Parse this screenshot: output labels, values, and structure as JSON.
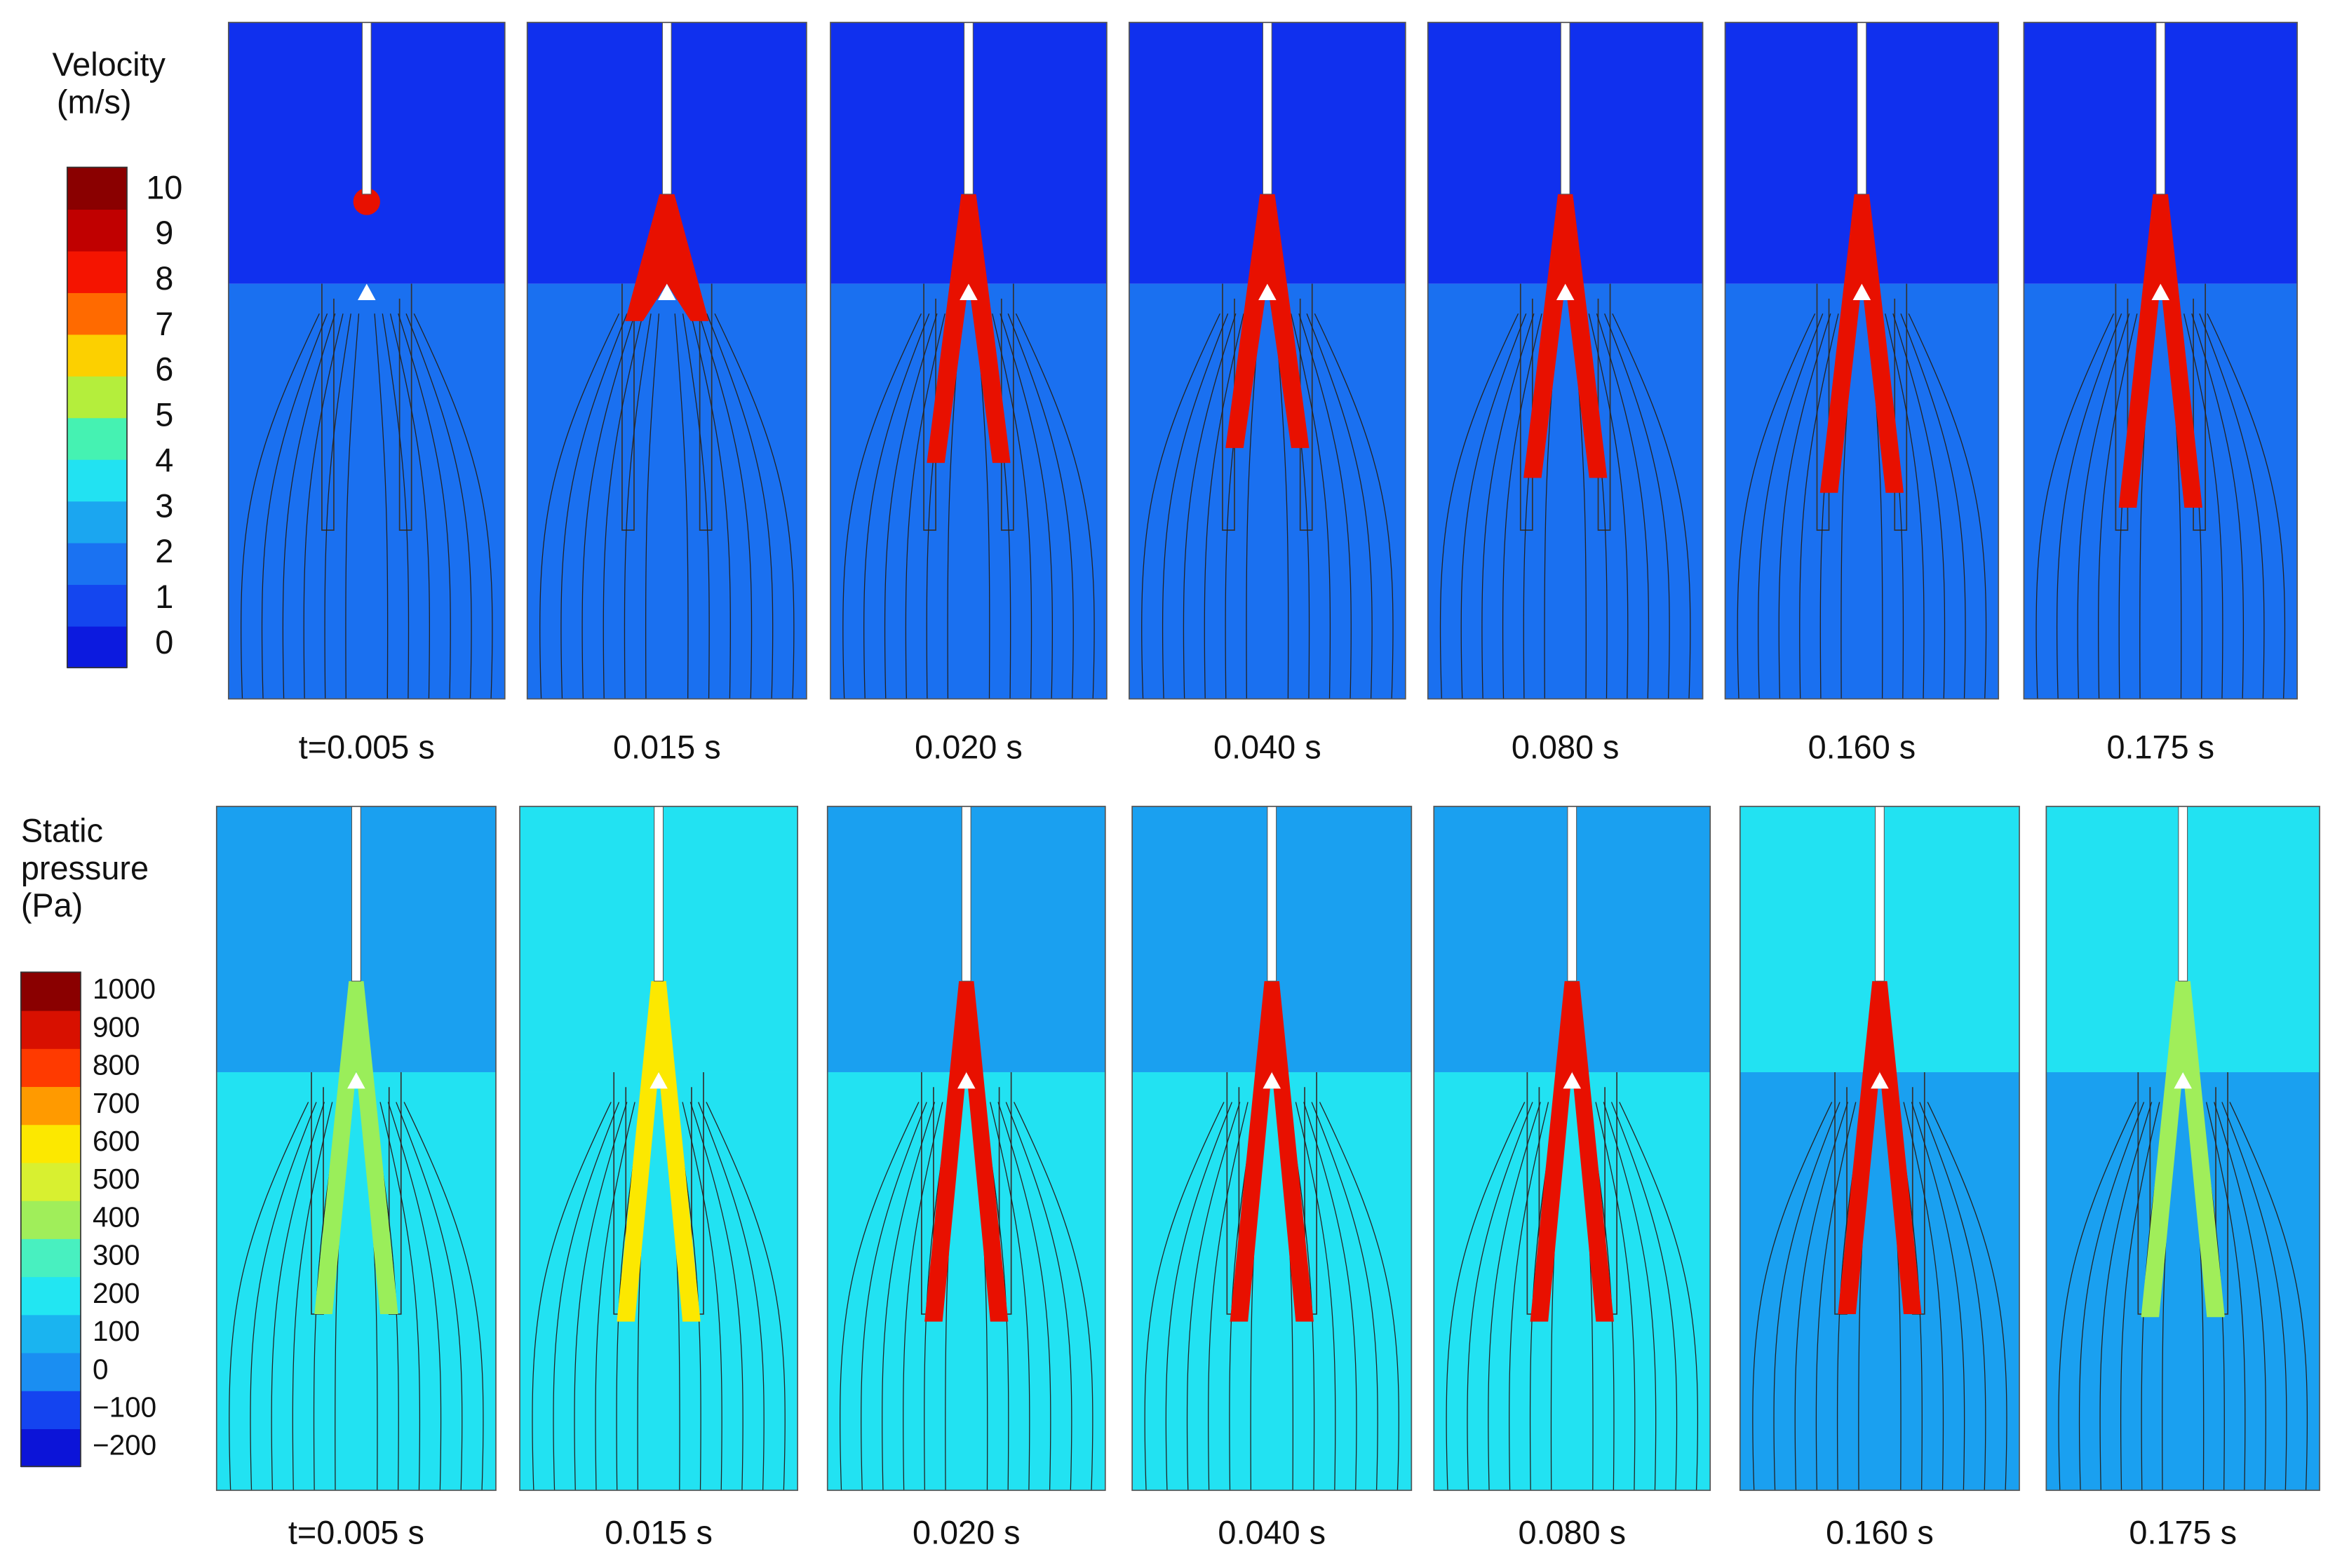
{
  "velocity_legend": {
    "title": [
      "Velocity",
      "(m/s)"
    ],
    "ticks": [
      0,
      1,
      2,
      3,
      4,
      5,
      6,
      7,
      8,
      9,
      10
    ],
    "lim": [
      -0.5,
      10.5
    ],
    "colors": [
      "#0c1adf",
      "#1446ef",
      "#1a72f2",
      "#1ba6f0",
      "#22e2f2",
      "#45f2b2",
      "#b4ee3c",
      "#fcd000",
      "#ff6a00",
      "#f51400",
      "#c00000",
      "#8a0000"
    ]
  },
  "pressure_legend": {
    "title": [
      "Static",
      "pressure",
      "(Pa)"
    ],
    "ticks": [
      {
        "value": -200,
        "label": "−200"
      },
      {
        "value": -100,
        "label": "−100"
      },
      0,
      100,
      200,
      300,
      400,
      500,
      600,
      700,
      800,
      900,
      1000
    ],
    "lim": [
      -250,
      1050
    ],
    "colors": [
      "#0c14d8",
      "#1444f0",
      "#1a8ef2",
      "#1ab4f0",
      "#22e6f2",
      "#48f0c0",
      "#a0ee5a",
      "#d8f030",
      "#fce800",
      "#ff9a00",
      "#ff3a00",
      "#d81000",
      "#8a0000"
    ]
  },
  "velocity_panels": {
    "times": [
      "t=0.005 s",
      "0.015 s",
      "0.020 s",
      "0.040 s",
      "0.080 s",
      "0.160 s",
      "0.175 s"
    ]
  },
  "pressure_panels": {
    "times": [
      "t=0.005 s",
      "0.015 s",
      "0.020 s",
      "0.040 s",
      "0.080 s",
      "0.160 s",
      "0.175 s"
    ]
  }
}
